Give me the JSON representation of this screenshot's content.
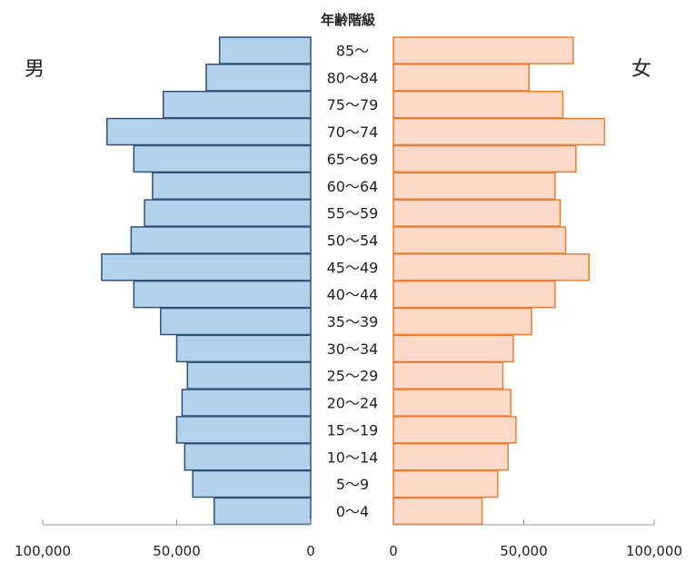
{
  "chart_data": {
    "type": "bar",
    "title": "年齢階級",
    "left_label": "男",
    "right_label": "女",
    "categories": [
      "85〜",
      "80〜84",
      "75〜79",
      "70〜74",
      "65〜69",
      "60〜64",
      "55〜59",
      "50〜54",
      "45〜49",
      "40〜44",
      "35〜39",
      "30〜34",
      "25〜29",
      "20〜24",
      "15〜19",
      "10〜14",
      "5〜9",
      "0〜4"
    ],
    "series": [
      {
        "name": "男",
        "values": [
          34000,
          39000,
          55000,
          76000,
          66000,
          59000,
          62000,
          67000,
          78000,
          66000,
          56000,
          50000,
          46000,
          48000,
          50000,
          47000,
          44000,
          36000
        ]
      },
      {
        "name": "女",
        "values": [
          69000,
          52000,
          65000,
          81000,
          70000,
          62000,
          64000,
          66000,
          75000,
          62000,
          53000,
          46000,
          42000,
          45000,
          47000,
          44000,
          40000,
          34000
        ]
      }
    ],
    "xlim": [
      0,
      100000
    ],
    "left_ticks": [
      "100,000",
      "50,000",
      "0"
    ],
    "right_ticks": [
      "0",
      "50,000",
      "100,000"
    ],
    "colors": {
      "male_fill": "#b3d1ea",
      "male_stroke": "#2f5178",
      "female_fill": "#fbd9c8",
      "female_stroke": "#ee7d31",
      "axis": "#9a9a9a"
    }
  }
}
